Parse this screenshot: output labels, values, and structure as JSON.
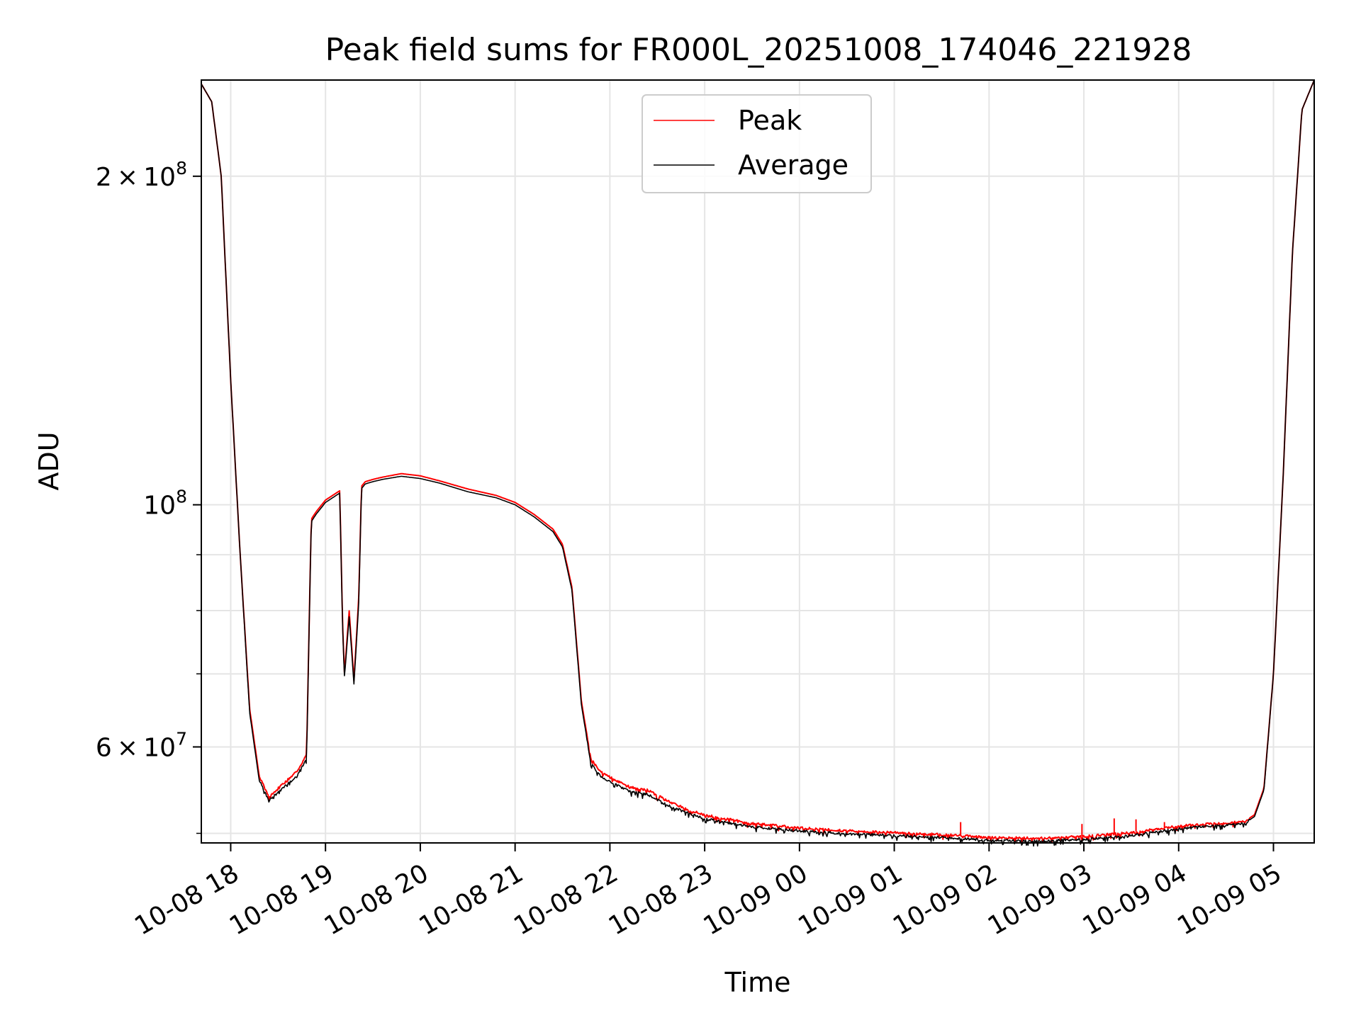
{
  "chart_data": {
    "type": "line",
    "title": "Peak field sums for FR000L_20251008_174046_221928",
    "xlabel": "Time",
    "ylabel": "ADU",
    "yscale": "log",
    "ylim": [
      49000000,
      245000000
    ],
    "xlim": [
      17.69,
      29.43
    ],
    "grid": true,
    "legend_position": "top-center",
    "x_ticks": [
      {
        "value": 18,
        "label": "10-08 18"
      },
      {
        "value": 19,
        "label": "10-08 19"
      },
      {
        "value": 20,
        "label": "10-08 20"
      },
      {
        "value": 21,
        "label": "10-08 21"
      },
      {
        "value": 22,
        "label": "10-08 22"
      },
      {
        "value": 23,
        "label": "10-08 23"
      },
      {
        "value": 24,
        "label": "10-09 00"
      },
      {
        "value": 25,
        "label": "10-09 01"
      },
      {
        "value": 26,
        "label": "10-09 02"
      },
      {
        "value": 27,
        "label": "10-09 03"
      },
      {
        "value": 28,
        "label": "10-09 04"
      },
      {
        "value": 29,
        "label": "10-09 05"
      }
    ],
    "y_ticks_major": [
      {
        "value": 60000000,
        "mantissa": "6",
        "label": "6 × 10^7"
      },
      {
        "value": 100000000,
        "mantissa": "",
        "label": "10^8"
      },
      {
        "value": 200000000,
        "mantissa": "2",
        "label": "2 × 10^8"
      }
    ],
    "y_ticks_minor": [
      50000000,
      70000000,
      80000000,
      90000000
    ],
    "x": [
      17.69,
      17.8,
      17.9,
      18.0,
      18.1,
      18.2,
      18.3,
      18.4,
      18.5,
      18.6,
      18.7,
      18.8,
      18.85,
      18.9,
      19.0,
      19.15,
      19.18,
      19.2,
      19.25,
      19.3,
      19.35,
      19.38,
      19.42,
      19.5,
      19.6,
      19.8,
      20.0,
      20.2,
      20.5,
      20.8,
      21.0,
      21.2,
      21.4,
      21.5,
      21.6,
      21.7,
      21.8,
      21.9,
      22.0,
      22.2,
      22.4,
      22.5,
      22.6,
      22.8,
      23.0,
      23.5,
      24.0,
      24.5,
      25.0,
      25.5,
      26.0,
      26.5,
      27.0,
      27.5,
      28.0,
      28.3,
      28.5,
      28.7,
      28.8,
      28.9,
      29.0,
      29.1,
      29.2,
      29.3,
      29.43
    ],
    "series": [
      {
        "name": "Peak",
        "color": "#ff0000",
        "values": [
          243000000,
          234000000,
          200000000,
          130000000,
          90000000,
          65000000,
          56500000,
          54000000,
          55000000,
          56000000,
          57000000,
          59000000,
          97000000,
          98500000,
          101000000,
          103000000,
          78000000,
          70000000,
          80000000,
          69000000,
          82000000,
          104000000,
          105000000,
          105500000,
          106000000,
          106800000,
          106300000,
          105200000,
          103400000,
          102000000,
          100500000,
          98000000,
          95000000,
          92000000,
          84000000,
          66000000,
          58500000,
          57000000,
          56300000,
          55200000,
          54800000,
          54200000,
          53600000,
          52700000,
          52000000,
          51100000,
          50600000,
          50300000,
          50100000,
          49900000,
          49600000,
          49500000,
          49700000,
          50100000,
          50800000,
          51000000,
          51100000,
          51300000,
          52000000,
          55000000,
          70000000,
          105000000,
          170000000,
          230000000,
          245000000
        ]
      },
      {
        "name": "Average",
        "color": "#000000",
        "values": [
          243000000,
          234000000,
          200000000,
          130000000,
          90000000,
          64500000,
          56000000,
          53600000,
          54500000,
          55500000,
          56500000,
          58500000,
          96500000,
          98000000,
          100500000,
          102500000,
          77500000,
          69500000,
          79000000,
          68500000,
          81000000,
          103500000,
          104500000,
          105000000,
          105500000,
          106200000,
          105700000,
          104700000,
          102800000,
          101500000,
          100000000,
          97500000,
          94500000,
          91500000,
          83500000,
          65500000,
          58000000,
          56500000,
          55800000,
          54700000,
          54300000,
          53700000,
          53100000,
          52300000,
          51600000,
          50700000,
          50300000,
          50000000,
          49800000,
          49600000,
          49300000,
          49200000,
          49400000,
          49800000,
          50500000,
          50800000,
          50900000,
          51100000,
          51800000,
          54800000,
          70000000,
          105000000,
          170000000,
          230000000,
          245000000
        ]
      }
    ],
    "spikes": [
      {
        "series": "Peak",
        "x": 25.7,
        "value": 51200000
      },
      {
        "series": "Peak",
        "x": 26.98,
        "value": 51000000
      },
      {
        "series": "Peak",
        "x": 27.32,
        "value": 51600000
      },
      {
        "series": "Peak",
        "x": 27.55,
        "value": 51500000
      },
      {
        "series": "Peak",
        "x": 27.85,
        "value": 51200000
      }
    ]
  }
}
